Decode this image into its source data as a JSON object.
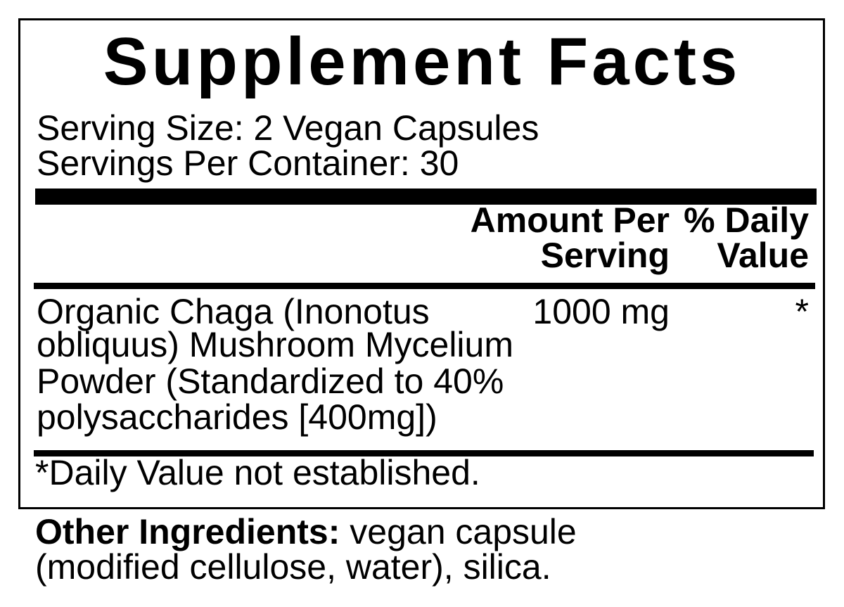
{
  "title": "Supplement Facts",
  "serving_size": "Serving Size: 2 Vegan Capsules",
  "servings_per_container": "Servings Per Container: 30",
  "header": {
    "amount_line1": "Amount Per",
    "amount_line2": "Serving",
    "dv_line1": "% Daily",
    "dv_line2": "Value"
  },
  "rows": [
    {
      "name_lines": [
        "Organic Chaga (Inonotus",
        "obliquus) Mushroom Mycelium",
        "Powder (Standardized to 40%",
        "polysaccharides [400mg])"
      ],
      "amount": "1000 mg",
      "daily_value": "*"
    }
  ],
  "footnote": "*Daily Value not established.",
  "other_ingredients": {
    "label": "Other Ingredients:",
    "text_line1": " vegan capsule",
    "text_line2": "(modified cellulose, water), silica."
  }
}
